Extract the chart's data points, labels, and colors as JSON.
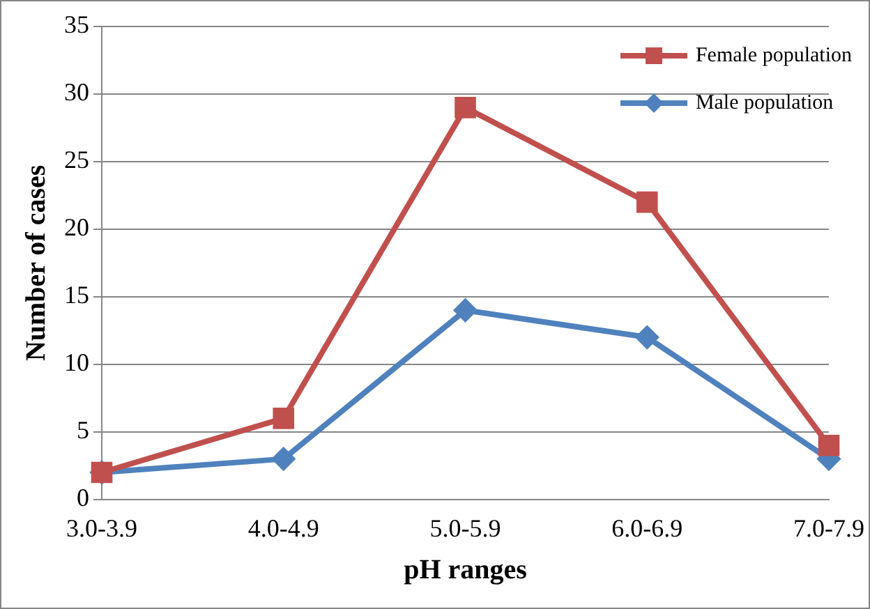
{
  "chart_data": {
    "type": "line",
    "xlabel": "pH ranges",
    "ylabel": "Number of cases",
    "categories": [
      "3.0-3.9",
      "4.0-4.9",
      "5.0-5.9",
      "6.0-6.9",
      "7.0-7.9"
    ],
    "series": [
      {
        "name": "Female population",
        "color": "#c0504d",
        "marker": "square",
        "values": [
          2,
          6,
          29,
          22,
          4
        ]
      },
      {
        "name": "Male population",
        "color": "#4f81bd",
        "marker": "diamond",
        "values": [
          2,
          3,
          14,
          12,
          3
        ]
      }
    ],
    "ylim": [
      0,
      35
    ],
    "yticks": [
      0,
      5,
      10,
      15,
      20,
      25,
      30,
      35
    ],
    "grid": "y",
    "legend": "top right",
    "line_style": "solid"
  }
}
